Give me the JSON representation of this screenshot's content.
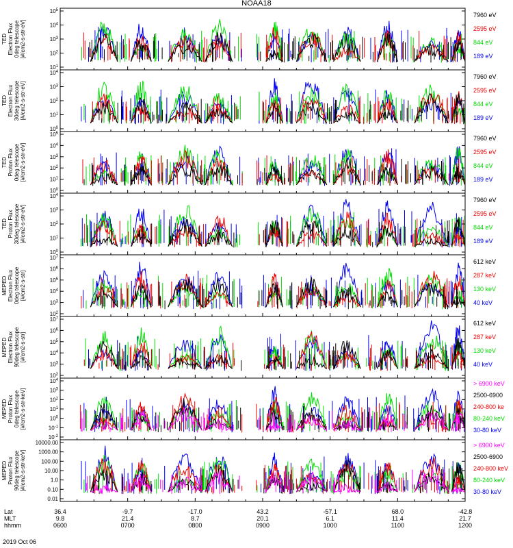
{
  "title": "NOAA18",
  "date": "2019 Oct 06",
  "colors": {
    "black": "#000000",
    "red": "#ee0000",
    "green": "#00dd00",
    "blue": "#0000ee",
    "magenta": "#ff00ff"
  },
  "footer": {
    "rows": [
      {
        "label": "Lat",
        "values": [
          "36.4",
          "-9.7",
          "-17.0",
          "43.2",
          "-57.1",
          "68.0",
          "-42.8"
        ]
      },
      {
        "label": "MLT",
        "values": [
          "9.8",
          "21.4",
          "8.7",
          "20.1",
          "6.1",
          "11.4",
          "21.7"
        ]
      },
      {
        "label": "hhmm",
        "values": [
          "0600",
          "0700",
          "0800",
          "0900",
          "1000",
          "1100",
          "1200"
        ]
      }
    ]
  },
  "chart_data": [
    {
      "type": "line",
      "panel": "ted-electron-0deg",
      "ylabel_lines": [
        "TED",
        "Electron Flux",
        "0deg telescope",
        "[#/cm2-s-str-eV]"
      ],
      "yticks": [
        "10^1",
        "10^2",
        "10^3",
        "10^4",
        "10^5"
      ],
      "ylim_log": [
        0,
        5
      ],
      "series": [
        {
          "name": "7960 eV",
          "color": "black"
        },
        {
          "name": "2595 eV",
          "color": "red"
        },
        {
          "name": "844 eV",
          "color": "green"
        },
        {
          "name": "189 eV",
          "color": "blue"
        }
      ]
    },
    {
      "type": "line",
      "panel": "ted-electron-30deg",
      "ylabel_lines": [
        "TED",
        "Electron Flux",
        "30deg telescope",
        "[#/cm2-s-str-eV]"
      ],
      "yticks": [
        "10^0",
        "10^1",
        "10^2",
        "10^3",
        "10^4"
      ],
      "ylim_log": [
        0,
        5
      ],
      "series": [
        {
          "name": "7960 eV",
          "color": "black"
        },
        {
          "name": "2595 eV",
          "color": "red"
        },
        {
          "name": "844 eV",
          "color": "green"
        },
        {
          "name": "189 eV",
          "color": "blue"
        }
      ]
    },
    {
      "type": "line",
      "panel": "ted-proton-0deg",
      "ylabel_lines": [
        "TED",
        "Proton Flux",
        "0deg telescope",
        "[#/cm2-s-str-eV]"
      ],
      "yticks": [
        "10^0",
        "10^1",
        "10^2",
        "10^3",
        "10^4",
        "10^5"
      ],
      "ylim_log": [
        0,
        5
      ],
      "series": [
        {
          "name": "7960 eV",
          "color": "black"
        },
        {
          "name": "2595 eV",
          "color": "red"
        },
        {
          "name": "844 eV",
          "color": "green"
        },
        {
          "name": "189 eV",
          "color": "blue"
        }
      ]
    },
    {
      "type": "line",
      "panel": "ted-proton-30deg",
      "ylabel_lines": [
        "TED",
        "Proton Flux",
        "30deg telescope",
        "[#/cm2-s-str-eV]"
      ],
      "yticks": [
        "10^0",
        "10^1",
        "10^2",
        "10^3",
        "10^4"
      ],
      "ylim_log": [
        0,
        5
      ],
      "series": [
        {
          "name": "7960 eV",
          "color": "black"
        },
        {
          "name": "2595 eV",
          "color": "red"
        },
        {
          "name": "844 eV",
          "color": "green"
        },
        {
          "name": "189 eV",
          "color": "blue"
        }
      ]
    },
    {
      "type": "line",
      "panel": "meped-electron-0deg",
      "ylabel_lines": [
        "MEPED",
        "Electron Flux",
        "0deg telescope",
        "[#/cm2-s-str]"
      ],
      "yticks": [
        "10^2",
        "10^3",
        "10^4",
        "10^5",
        "10^6",
        "10^7"
      ],
      "ylim_log": [
        2,
        7
      ],
      "series": [
        {
          "name": "612 keV",
          "color": "black"
        },
        {
          "name": "287 keV",
          "color": "red"
        },
        {
          "name": "130 keV",
          "color": "green"
        },
        {
          "name": "40 keV",
          "color": "blue"
        }
      ]
    },
    {
      "type": "line",
      "panel": "meped-electron-90deg",
      "ylabel_lines": [
        "MEPED",
        "Electron Flux",
        "90deg telescope",
        "[#/cm2-s-str]"
      ],
      "yticks": [
        "10^2",
        "10^3",
        "10^4",
        "10^5",
        "10^6",
        "10^7"
      ],
      "ylim_log": [
        2,
        7
      ],
      "series": [
        {
          "name": "612 keV",
          "color": "black"
        },
        {
          "name": "287 keV",
          "color": "red"
        },
        {
          "name": "130 keV",
          "color": "green"
        },
        {
          "name": "40 keV",
          "color": "blue"
        }
      ]
    },
    {
      "type": "line",
      "panel": "meped-proton-0deg",
      "ylabel_lines": [
        "MEPED",
        "Proton Flux",
        "0deg telescope",
        "[#/cm2-s-str-keV]"
      ],
      "yticks": [
        "10^-2",
        "10^-1",
        "10^0",
        "10^1",
        "10^2",
        "10^3",
        "10^4"
      ],
      "ylim_log": [
        -2,
        4
      ],
      "series": [
        {
          "name": "> 6900 keV",
          "color": "magenta"
        },
        {
          "name": "2500-6900",
          "color": "black"
        },
        {
          "name": "240-800 ke",
          "color": "red"
        },
        {
          "name": "80-240 keV",
          "color": "green"
        },
        {
          "name": "30-80 keV",
          "color": "blue"
        }
      ]
    },
    {
      "type": "line",
      "panel": "meped-proton-90deg",
      "ylabel_lines": [
        "MEPED",
        "Proton Flux",
        "90deg telescope",
        "[#/cm2-s-str-keV]"
      ],
      "yticks": [
        "0.01",
        "0.10",
        "1.0",
        "10.00",
        "100.00",
        "1000.00",
        "10000.00"
      ],
      "ylim_log": [
        -2,
        4
      ],
      "series": [
        {
          "name": "> 6900 keV",
          "color": "magenta"
        },
        {
          "name": "2500-6900",
          "color": "black"
        },
        {
          "name": "240-800 keV",
          "color": "red"
        },
        {
          "name": "80-240 keV",
          "color": "green"
        },
        {
          "name": "30-80 keV",
          "color": "blue"
        }
      ]
    }
  ]
}
